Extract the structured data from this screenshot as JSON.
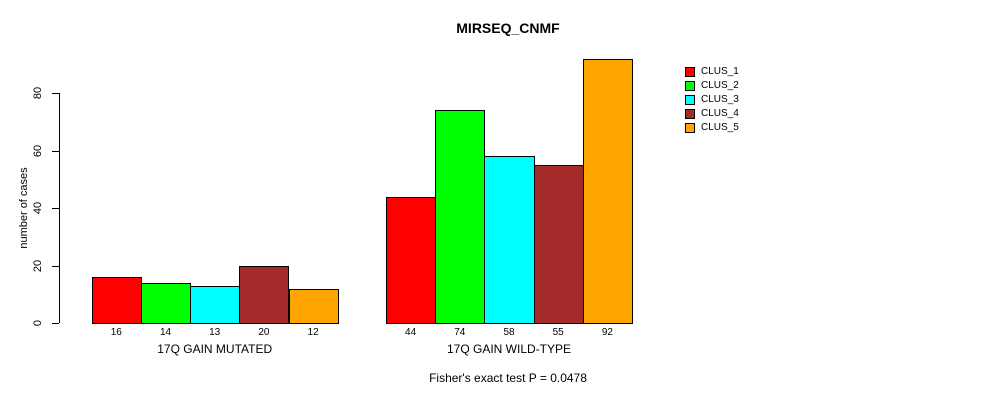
{
  "chart_data": {
    "type": "bar",
    "title": "MIRSEQ_CNMF",
    "ylabel": "number of cases",
    "xlabel": "",
    "ylim": [
      0,
      80
    ],
    "yticks": [
      0,
      20,
      40,
      60,
      80
    ],
    "grid": false,
    "legend_position": "right",
    "bar_border_color": "#000000",
    "background_color": "#FFFFFF",
    "categories": [
      "17Q GAIN MUTATED",
      "17Q GAIN WILD-TYPE"
    ],
    "series": [
      {
        "name": "CLUS_1",
        "color": "#FF0000",
        "values": [
          16,
          44
        ]
      },
      {
        "name": "CLUS_2",
        "color": "#00FF00",
        "values": [
          14,
          74
        ]
      },
      {
        "name": "CLUS_3",
        "color": "#00FFFF",
        "values": [
          13,
          58
        ]
      },
      {
        "name": "CLUS_4",
        "color": "#A52A2A",
        "values": [
          20,
          55
        ]
      },
      {
        "name": "CLUS_5",
        "color": "#FFA500",
        "values": [
          12,
          92
        ]
      }
    ],
    "bar_value_labels_shown": true,
    "annotation": "Fisher's exact test P = 0.0478"
  }
}
